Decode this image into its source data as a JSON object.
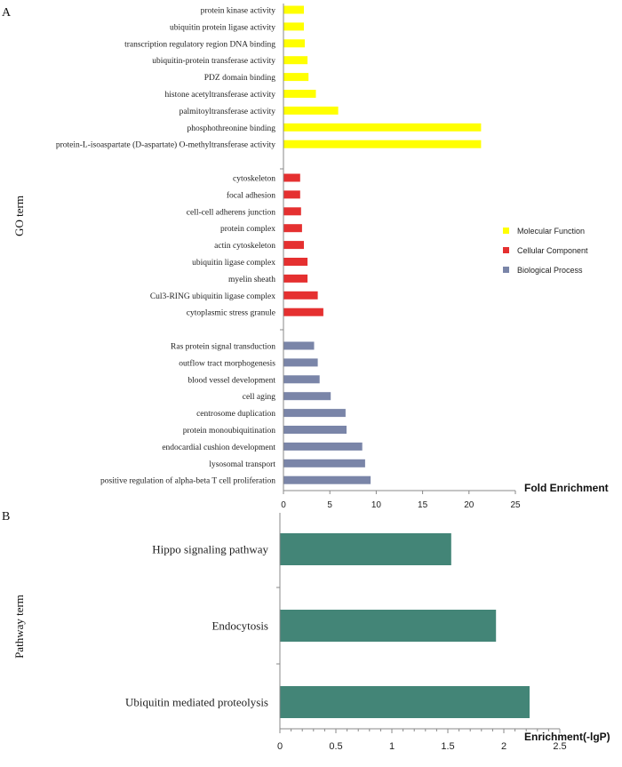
{
  "chart_data": [
    {
      "panel_label": "A",
      "type": "bar",
      "orientation": "horizontal",
      "ylabel": "GO term",
      "xlabel": "Fold Enrichment",
      "xlim": [
        0,
        25
      ],
      "xticks": [
        "0",
        "5",
        "10",
        "15",
        "20",
        "25"
      ],
      "legend": [
        {
          "name": "Molecular Function",
          "color": "#ffff00"
        },
        {
          "name": "Cellular Component",
          "color": "#e53030"
        },
        {
          "name": "Biological  Process",
          "color": "#7a85a8"
        }
      ],
      "groups": [
        {
          "name": "Molecular Function",
          "color": "#ffff00",
          "categories": [
            "protein kinase activity",
            "ubiquitin protein ligase activity",
            "transcription regulatory region DNA binding",
            "ubiquitin-protein transferase activity",
            "PDZ domain binding",
            "histone acetyltransferase activity",
            "palmitoyltransferase activity",
            "phosphothreonine binding",
            "protein-L-isoaspartate (D-aspartate) O-methyltransferase activity"
          ],
          "values": [
            2.2,
            2.2,
            2.3,
            2.6,
            2.7,
            3.5,
            5.9,
            21.3,
            21.3
          ]
        },
        {
          "name": "Cellular Component",
          "color": "#e53030",
          "categories": [
            "cytoskeleton",
            "focal adhesion",
            "cell-cell adherens junction",
            "protein complex",
            "actin cytoskeleton",
            "ubiquitin ligase complex",
            "myelin sheath",
            "Cul3-RING ubiquitin ligase complex",
            "cytoplasmic stress granule"
          ],
          "values": [
            1.8,
            1.8,
            1.9,
            2.0,
            2.2,
            2.6,
            2.6,
            3.7,
            4.3
          ]
        },
        {
          "name": "Biological  Process",
          "color": "#7a85a8",
          "categories": [
            "Ras protein signal transduction",
            "outflow tract morphogenesis",
            "blood vessel development",
            "cell aging",
            "centrosome duplication",
            "protein monoubiquitination",
            "endocardial cushion development",
            "lysosomal transport",
            "positive regulation of alpha-beta T cell proliferation"
          ],
          "values": [
            3.3,
            3.7,
            3.9,
            5.1,
            6.7,
            6.8,
            8.5,
            8.8,
            9.4
          ]
        }
      ]
    },
    {
      "panel_label": "B",
      "type": "bar",
      "orientation": "horizontal",
      "ylabel": "Pathway term",
      "xlabel": "Enrichment(-lgP)",
      "xlim": [
        0,
        2.5
      ],
      "xticks": [
        "0",
        "0.5",
        "1",
        "1.5",
        "2",
        "2.5"
      ],
      "color": "#438577",
      "categories": [
        "Hippo signaling pathway",
        "Endocytosis",
        "Ubiquitin mediated proteolysis"
      ],
      "values": [
        1.53,
        1.93,
        2.23
      ]
    }
  ]
}
